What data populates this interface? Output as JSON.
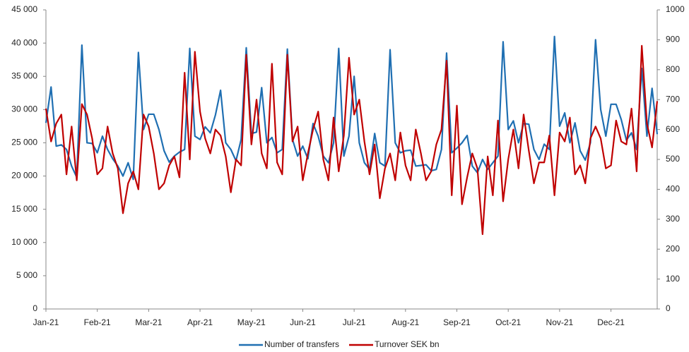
{
  "chart_data": {
    "type": "line",
    "categories": [
      "Jan-21",
      null,
      null,
      null,
      null,
      null,
      null,
      null,
      null,
      null,
      "Feb-21",
      null,
      null,
      null,
      null,
      null,
      null,
      null,
      null,
      null,
      "Mar-21",
      null,
      null,
      null,
      null,
      null,
      null,
      null,
      null,
      null,
      "Apr-21",
      null,
      null,
      null,
      null,
      null,
      null,
      null,
      null,
      null,
      "May-21",
      null,
      null,
      null,
      null,
      null,
      null,
      null,
      null,
      null,
      "Jun-21",
      null,
      null,
      null,
      null,
      null,
      null,
      null,
      null,
      null,
      "Jul-21",
      null,
      null,
      null,
      null,
      null,
      null,
      null,
      null,
      null,
      "Aug-21",
      null,
      null,
      null,
      null,
      null,
      null,
      null,
      null,
      null,
      "Sep-21",
      null,
      null,
      null,
      null,
      null,
      null,
      null,
      null,
      null,
      "Oct-21",
      null,
      null,
      null,
      null,
      null,
      null,
      null,
      null,
      null,
      "Nov-21",
      null,
      null,
      null,
      null,
      null,
      null,
      null,
      null,
      null,
      "Dec-21",
      null,
      null,
      null,
      null,
      null,
      null,
      null,
      null,
      null
    ],
    "series": [
      {
        "name": "Number of transfers",
        "color": "#1f6fb2",
        "values": [
          28000,
          33400,
          24500,
          24700,
          24000,
          21500,
          19800,
          39700,
          25000,
          24900,
          23500,
          26000,
          24000,
          22600,
          21500,
          20000,
          22000,
          19500,
          38600,
          27000,
          29300,
          29300,
          27000,
          23800,
          22100,
          23000,
          23600,
          24000,
          39200,
          26000,
          25500,
          27400,
          26500,
          29200,
          32900,
          25000,
          24000,
          22300,
          25500,
          39300,
          26400,
          26600,
          33300,
          25000,
          25800,
          23500,
          24000,
          39100,
          25500,
          23000,
          24500,
          22600,
          27900,
          26000,
          23000,
          22000,
          25000,
          39200,
          23000,
          26000,
          35000,
          25000,
          22000,
          21000,
          26400,
          22000,
          21500,
          39000,
          25000,
          23500,
          23800,
          23900,
          21500,
          21600,
          21700,
          20800,
          21000,
          24000,
          38500,
          23500,
          24200,
          25000,
          26100,
          21500,
          20500,
          22500,
          21000,
          22000,
          23000,
          40200,
          27000,
          28300,
          25000,
          27900,
          27800,
          24000,
          22500,
          24800,
          24000,
          41000,
          27500,
          29500,
          25000,
          28000,
          23800,
          22400,
          25000,
          40500,
          30000,
          26000,
          30800,
          30800,
          28500,
          25400,
          26500,
          24000,
          36200,
          26000,
          33200,
          26300
        ]
      },
      {
        "name": "Turnover SEK bn",
        "color": "#c00000",
        "axis": "y2",
        "values": [
          670,
          560,
          620,
          650,
          450,
          610,
          430,
          685,
          650,
          570,
          450,
          470,
          610,
          520,
          470,
          320,
          420,
          460,
          400,
          650,
          610,
          520,
          400,
          420,
          480,
          510,
          440,
          790,
          500,
          860,
          660,
          570,
          520,
          600,
          580,
          510,
          390,
          500,
          480,
          850,
          550,
          700,
          520,
          470,
          820,
          490,
          450,
          850,
          560,
          610,
          430,
          520,
          600,
          660,
          500,
          430,
          640,
          460,
          580,
          840,
          650,
          700,
          560,
          450,
          550,
          370,
          470,
          520,
          430,
          590,
          480,
          430,
          600,
          520,
          430,
          460,
          550,
          600,
          830,
          380,
          680,
          350,
          440,
          520,
          470,
          250,
          510,
          380,
          630,
          360,
          500,
          600,
          470,
          650,
          530,
          420,
          490,
          490,
          580,
          380,
          590,
          560,
          640,
          450,
          480,
          420,
          570,
          610,
          570,
          470,
          480,
          630,
          560,
          550,
          670,
          460,
          880,
          620,
          540,
          695
        ]
      }
    ],
    "ylim": [
      0,
      45000
    ],
    "yticks": [
      0,
      {
        "value": 5000,
        "label": "5 000"
      },
      {
        "value": 10000,
        "label": "10 000"
      },
      {
        "value": 15000,
        "label": "15 000"
      },
      {
        "value": 20000,
        "label": "20 000"
      },
      {
        "value": 25000,
        "label": "25 000"
      },
      {
        "value": 30000,
        "label": "30 000"
      },
      {
        "value": 35000,
        "label": "35 000"
      },
      {
        "value": 40000,
        "label": "40 000"
      },
      {
        "value": 45000,
        "label": "45 000"
      }
    ],
    "y2lim": [
      0,
      1000
    ],
    "y2ticks": [
      0,
      100,
      200,
      300,
      400,
      500,
      600,
      700,
      800,
      900,
      1000
    ]
  }
}
